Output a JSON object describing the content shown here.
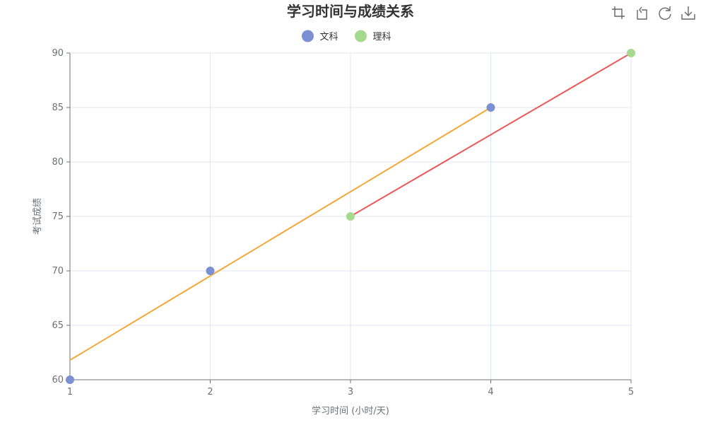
{
  "chart_data": {
    "type": "scatter",
    "title": "学习时间与成绩关系",
    "xlabel": "学习时间 (小时/天)",
    "ylabel": "考试成绩",
    "xlim": [
      1,
      5
    ],
    "ylim": [
      60,
      90
    ],
    "x_ticks": [
      1,
      2,
      3,
      4,
      5
    ],
    "y_ticks": [
      60,
      65,
      70,
      75,
      80,
      85,
      90
    ],
    "grid": true,
    "legend_position": "top-center",
    "series": [
      {
        "name": "文科",
        "color": "#7b8fd3",
        "points": [
          [
            1,
            60
          ],
          [
            2,
            70
          ],
          [
            4,
            85
          ]
        ],
        "trendline": {
          "color": "#f5a73a",
          "points": [
            [
              1,
              61.8
            ],
            [
              4,
              85
            ]
          ]
        }
      },
      {
        "name": "理科",
        "color": "#a4d98e",
        "points": [
          [
            3,
            75
          ],
          [
            5,
            90
          ]
        ],
        "trendline": {
          "color": "#ee5555",
          "points": [
            [
              3,
              75
            ],
            [
              5,
              90
            ]
          ]
        }
      }
    ]
  },
  "toolbox": {
    "icons": [
      "zoom-icon",
      "zoom-reset-icon",
      "restore-icon",
      "save-image-icon"
    ]
  }
}
